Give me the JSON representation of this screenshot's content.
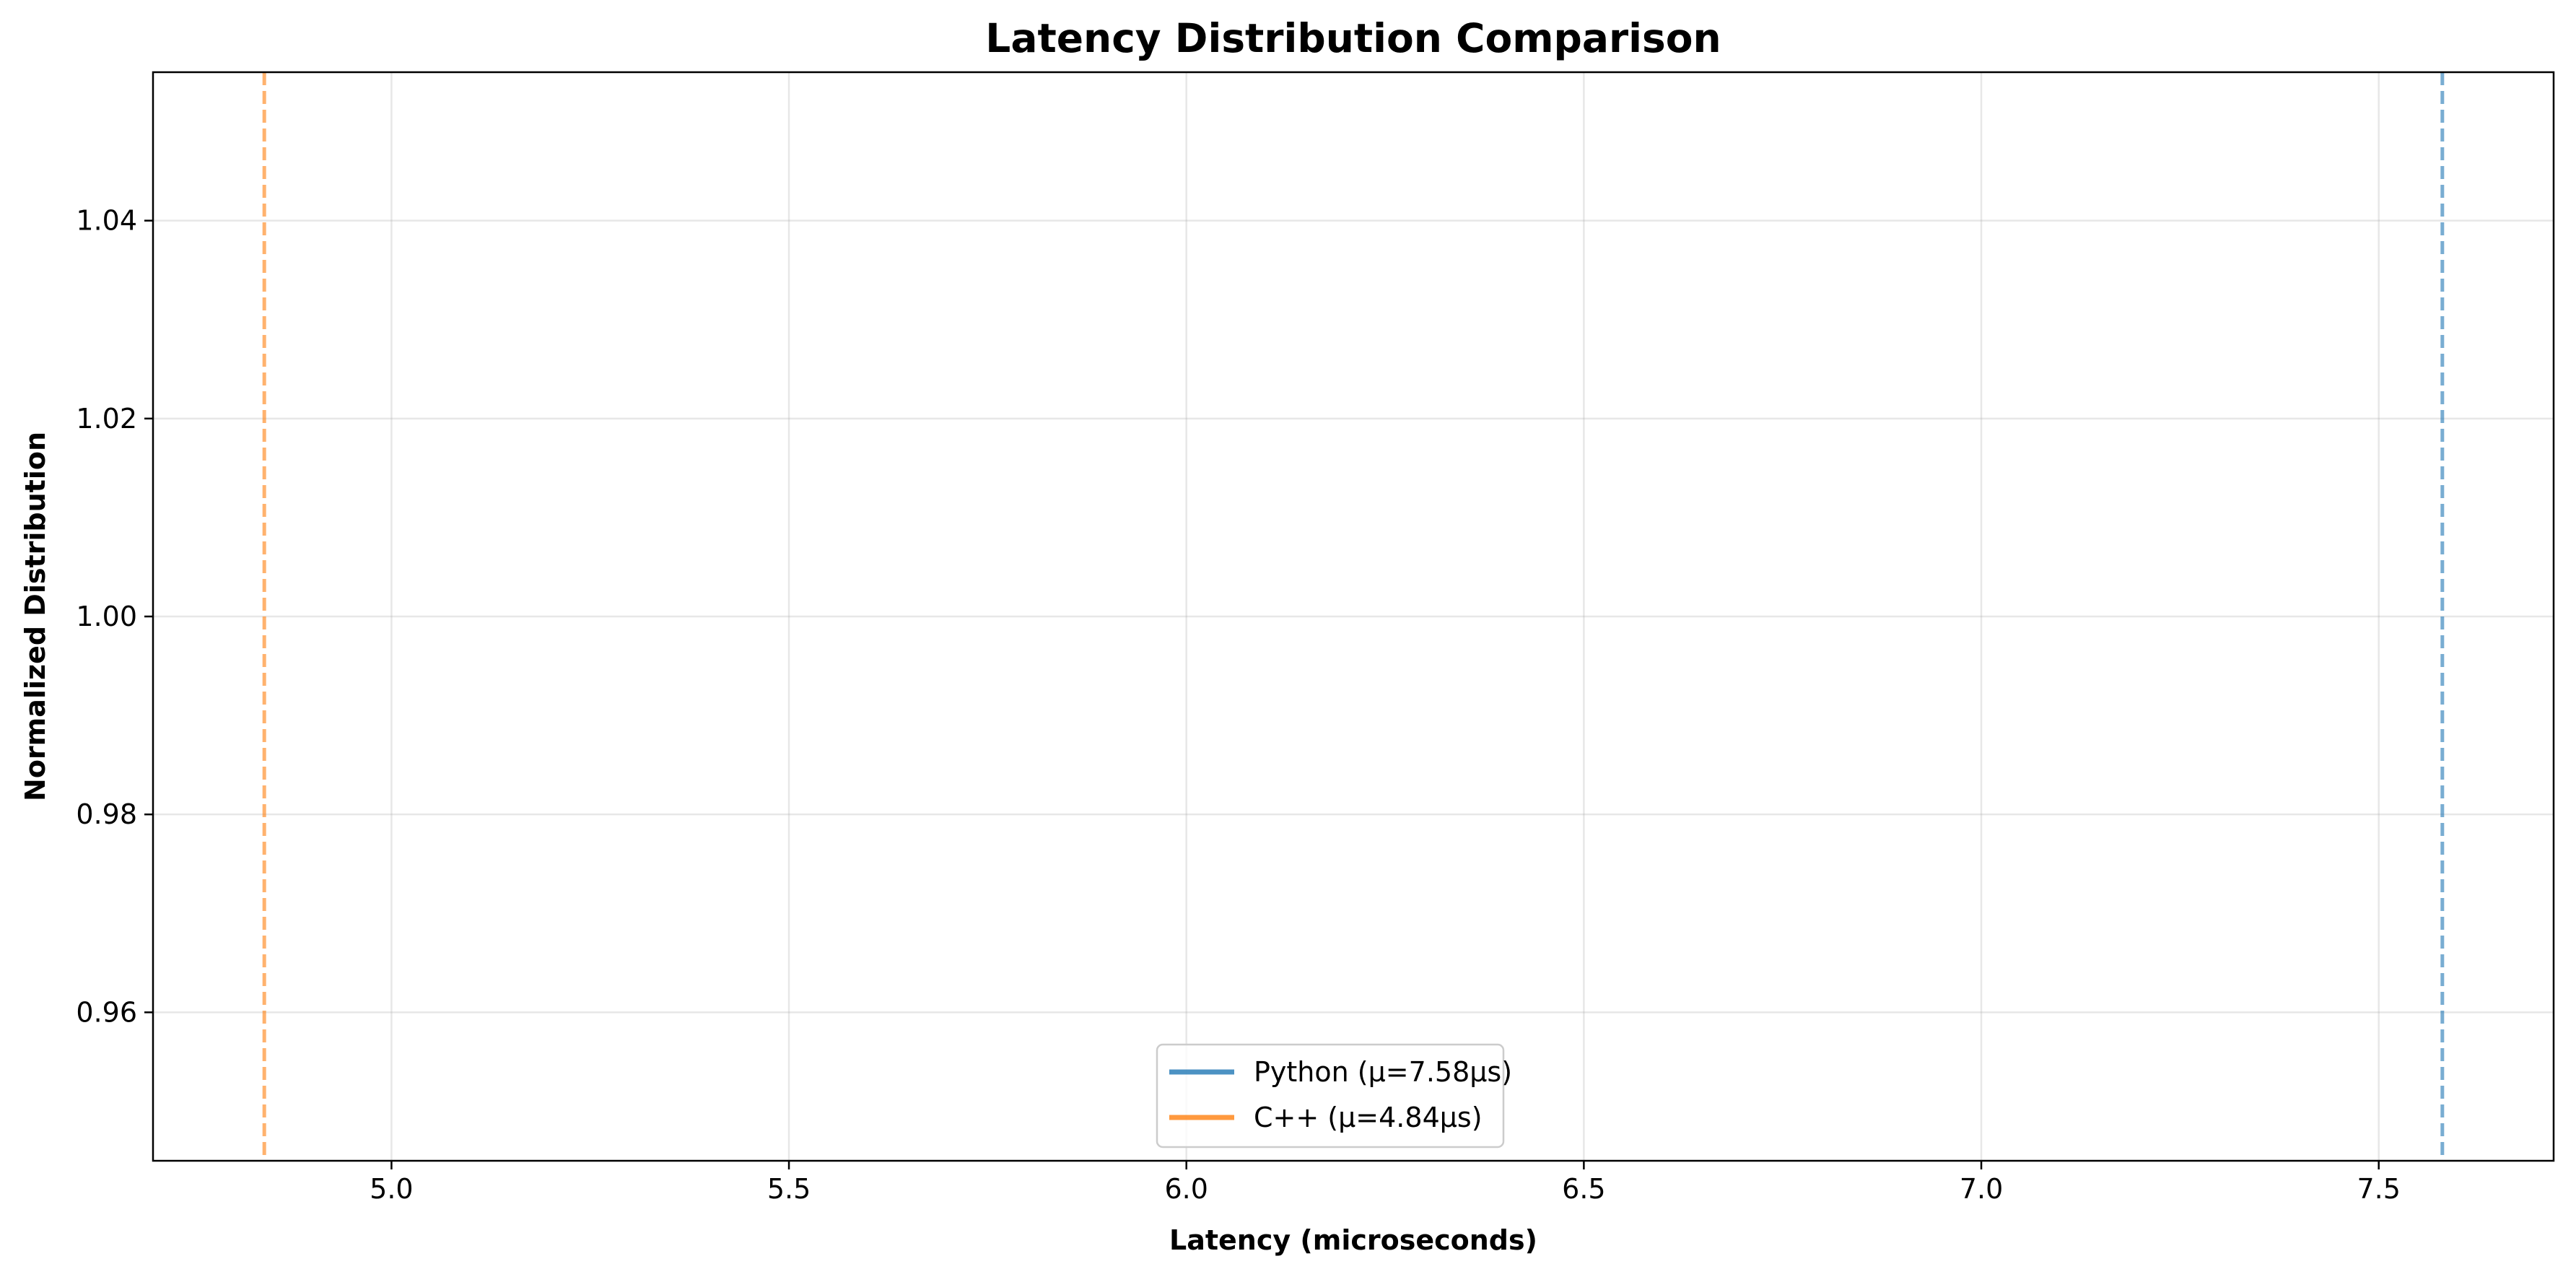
{
  "chart_data": {
    "type": "line",
    "title": "Latency Distribution Comparison",
    "xlabel": "Latency (microseconds)",
    "ylabel": "Normalized Distribution",
    "xlim": [
      4.7,
      7.72
    ],
    "ylim": [
      0.945,
      1.055
    ],
    "xticks": [
      5.0,
      5.5,
      6.0,
      6.5,
      7.0,
      7.5
    ],
    "xtick_labels": [
      "5.0",
      "5.5",
      "6.0",
      "6.5",
      "7.0",
      "7.5"
    ],
    "yticks": [
      0.96,
      0.98,
      1.0,
      1.02,
      1.04
    ],
    "ytick_labels": [
      "0.96",
      "0.98",
      "1.00",
      "1.02",
      "1.04"
    ],
    "grid": true,
    "legend_position": "lower center",
    "series": [
      {
        "name": "Python (μ=7.58μs)",
        "mean": 7.58,
        "color": "#1f77b4"
      },
      {
        "name": "C++ (μ=4.84μs)",
        "mean": 4.84,
        "color": "#ff7f0e"
      }
    ]
  }
}
